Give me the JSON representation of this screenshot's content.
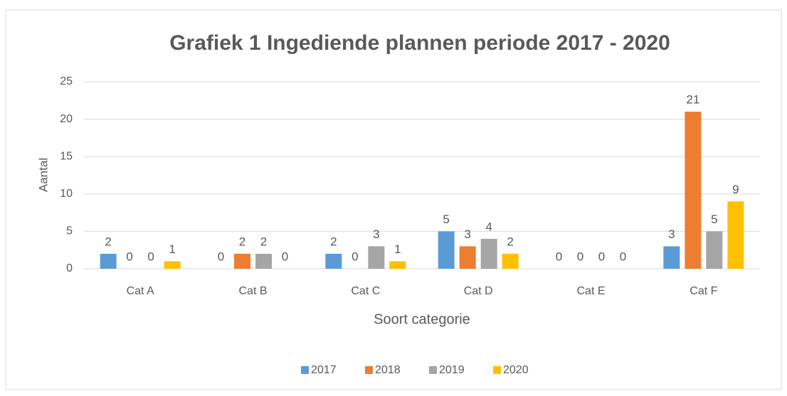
{
  "chart_data": {
    "type": "bar",
    "title": "Grafiek 1 Ingediende plannen periode 2017 - 2020",
    "x_label": "Soort categorie",
    "y_label": "Aantal",
    "categories": [
      "Cat A",
      "Cat B",
      "Cat C",
      "Cat D",
      "Cat E",
      "Cat F"
    ],
    "series": [
      {
        "name": "2017",
        "color": "#5b9bd5",
        "values": [
          2,
          0,
          2,
          5,
          0,
          3
        ]
      },
      {
        "name": "2018",
        "color": "#ed7d31",
        "values": [
          0,
          2,
          0,
          3,
          0,
          21
        ]
      },
      {
        "name": "2019",
        "color": "#a5a5a5",
        "values": [
          0,
          2,
          3,
          4,
          0,
          5
        ]
      },
      {
        "name": "2020",
        "color": "#ffc000",
        "values": [
          1,
          0,
          1,
          2,
          0,
          9
        ]
      }
    ],
    "ylim": [
      0,
      25
    ],
    "yticks": [
      0,
      5,
      10,
      15,
      20,
      25
    ],
    "grid": true,
    "legend": "bottom"
  }
}
